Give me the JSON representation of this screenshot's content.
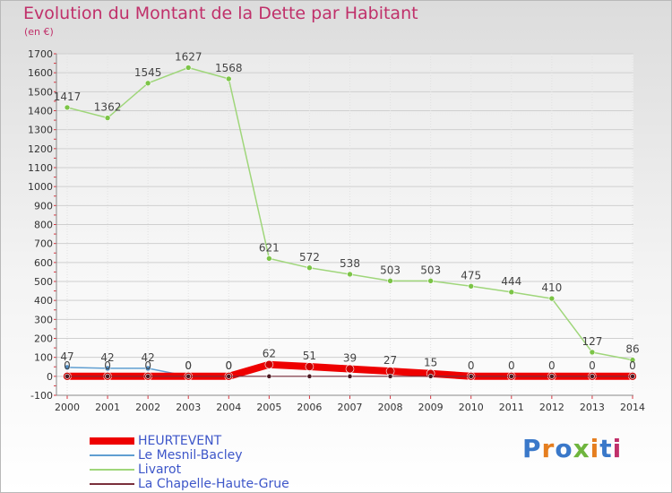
{
  "page": {
    "title": "Evolution du Montant de la Dette par Habitant",
    "subtitle": "(en €)"
  },
  "brand": {
    "text": "Proxiti",
    "colors": [
      "#3a78c9",
      "#e57e1f",
      "#3a78c9",
      "#6fb53e",
      "#e57e1f",
      "#3a78c9",
      "#c0306a"
    ]
  },
  "chart_data": {
    "type": "line",
    "title": "Evolution du Montant de la Dette par Habitant",
    "subtitle": "(en €)",
    "xlabel": "",
    "ylabel": "",
    "x": [
      2000,
      2001,
      2002,
      2003,
      2004,
      2005,
      2006,
      2007,
      2008,
      2009,
      2010,
      2011,
      2012,
      2013,
      2014
    ],
    "ylim": [
      -100,
      1700
    ],
    "yticks": [
      -100,
      0,
      100,
      200,
      300,
      400,
      500,
      600,
      700,
      800,
      900,
      1000,
      1100,
      1200,
      1300,
      1400,
      1500,
      1600,
      1700
    ],
    "grid": true,
    "legend_position": "bottom",
    "series": [
      {
        "name": "HEURTEVENT",
        "color": "#ee0000",
        "values": [
          0,
          0,
          0,
          0,
          0,
          62,
          51,
          39,
          27,
          15,
          0,
          0,
          0,
          0,
          0
        ],
        "labels": [
          "0",
          "0",
          "0",
          "0",
          "0",
          "62",
          "51",
          "39",
          "27",
          "15",
          "0",
          "0",
          "0",
          "0",
          "0"
        ]
      },
      {
        "name": "Le Mesnil-Bacley",
        "color": "#5f9ed1",
        "values": [
          47,
          42,
          42,
          0,
          0,
          null,
          null,
          null,
          null,
          null,
          null,
          null,
          null,
          null,
          null
        ],
        "labels": [
          "47",
          "42",
          "42",
          "0",
          "0",
          "",
          "",
          "",
          "",
          "",
          "",
          "",
          "",
          "",
          ""
        ]
      },
      {
        "name": "Livarot",
        "color": "#9fd67a",
        "values": [
          1417,
          1362,
          1545,
          1627,
          1568,
          621,
          572,
          538,
          503,
          503,
          475,
          444,
          410,
          127,
          86
        ],
        "labels": [
          "1417",
          "1362",
          "1545",
          "1627",
          "1568",
          "621",
          "572",
          "538",
          "503",
          "503",
          "475",
          "444",
          "410",
          "127",
          "86"
        ]
      },
      {
        "name": "La Chapelle-Haute-Grue",
        "color": "#7a2f3c",
        "values": [
          0,
          0,
          0,
          0,
          0,
          0,
          0,
          0,
          0,
          0,
          0,
          0,
          0,
          0,
          0
        ],
        "labels": []
      }
    ]
  }
}
